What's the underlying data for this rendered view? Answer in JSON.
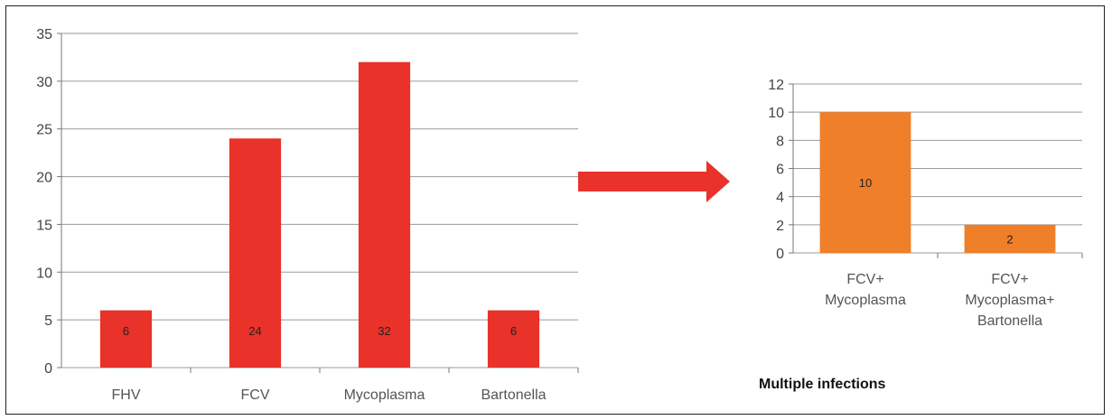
{
  "chart_data": [
    {
      "type": "bar",
      "categories": [
        "FHV",
        "FCV",
        "Mycoplasma",
        "Bartonella"
      ],
      "values": [
        6,
        24,
        32,
        6
      ],
      "data_labels": [
        "6",
        "24",
        "32",
        "6"
      ],
      "ylim": [
        0,
        35
      ],
      "yticks": [
        0,
        5,
        10,
        15,
        20,
        25,
        30,
        35
      ],
      "grid": true,
      "bar_color": "#e8322a"
    },
    {
      "type": "bar",
      "categories": [
        [
          "FCV+",
          "Mycoplasma"
        ],
        [
          "FCV+",
          "Mycoplasma+",
          "Bartonella"
        ]
      ],
      "values": [
        10,
        2
      ],
      "data_labels": [
        "10",
        "2"
      ],
      "ylim": [
        0,
        12
      ],
      "yticks": [
        0,
        2,
        4,
        6,
        8,
        10,
        12
      ],
      "grid": true,
      "bar_color": "#f07f2a",
      "caption": "Multiple infections"
    }
  ],
  "arrow_color": "#e8322a"
}
